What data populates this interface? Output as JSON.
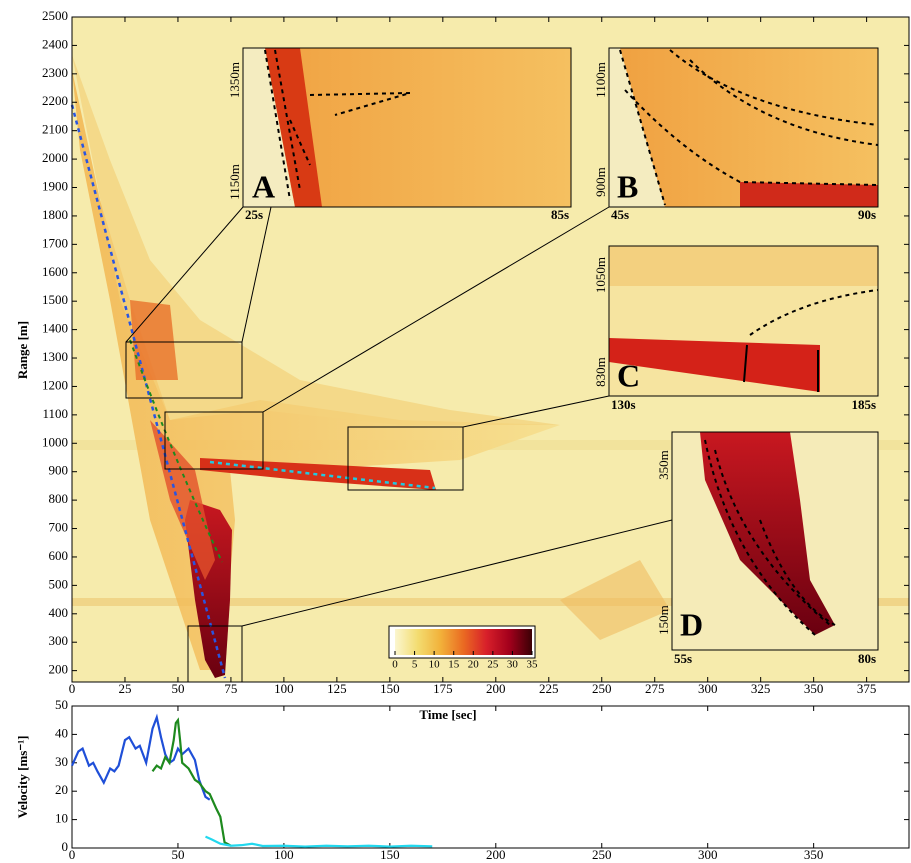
{
  "chart_data": [
    {
      "type": "image",
      "xlabel": "Time [sec]",
      "ylabel": "Range [m]",
      "xlim": [
        0,
        395
      ],
      "ylim": [
        160,
        2500
      ],
      "xticks": [
        0,
        25,
        50,
        75,
        100,
        125,
        150,
        175,
        200,
        225,
        250,
        275,
        300,
        325,
        350,
        375
      ],
      "yticks": [
        200,
        300,
        400,
        500,
        600,
        700,
        800,
        900,
        1000,
        1100,
        1200,
        1300,
        1400,
        1500,
        1600,
        1700,
        1800,
        1900,
        2000,
        2100,
        2200,
        2300,
        2400,
        2500
      ],
      "colorbar": {
        "lim": [
          0,
          35
        ],
        "ticks": [
          0,
          5,
          10,
          15,
          20,
          25,
          30,
          35
        ],
        "colors": [
          "#fbf6cf",
          "#f3dc70",
          "#f2b13a",
          "#ea6a22",
          "#d8202a",
          "#a3001c",
          "#3b0005"
        ]
      },
      "insets": [
        {
          "label": "A",
          "ylabels": [
            "1350m",
            "1150m"
          ],
          "xlabels": [
            "25s",
            "85s"
          ]
        },
        {
          "label": "B",
          "ylabels": [
            "1100m",
            "900m"
          ],
          "xlabels": [
            "45s",
            "90s"
          ]
        },
        {
          "label": "C",
          "ylabels": [
            "1050m",
            "830m"
          ],
          "xlabels": [
            "130s",
            "185s"
          ]
        },
        {
          "label": "D",
          "ylabels": [
            "350m",
            "150m"
          ],
          "xlabels": [
            "55s",
            "80s"
          ]
        }
      ]
    },
    {
      "type": "line",
      "ylabel": "Velocity [ms⁻¹]",
      "xlim": [
        0,
        395
      ],
      "ylim": [
        0,
        50
      ],
      "xticks": [
        0,
        50,
        100,
        150,
        200,
        250,
        300,
        350
      ],
      "yticks": [
        0,
        10,
        20,
        30,
        40,
        50
      ],
      "series": [
        {
          "color": "#1f4fd8",
          "x": [
            0,
            3,
            5,
            8,
            10,
            12,
            15,
            18,
            20,
            22,
            25,
            27,
            30,
            32,
            35,
            38,
            40,
            42,
            44,
            46,
            48,
            50,
            52,
            55,
            58,
            60,
            63,
            65
          ],
          "values": [
            29,
            34,
            35,
            29,
            30,
            27,
            23,
            28,
            27,
            29,
            38,
            39,
            35,
            36,
            30,
            42,
            46,
            39,
            33,
            30,
            31,
            35,
            33,
            35,
            31,
            24,
            18,
            17
          ]
        },
        {
          "color": "#1e8a1e",
          "x": [
            38,
            40,
            42,
            44,
            46,
            48,
            49,
            50,
            51,
            52,
            55,
            58,
            60,
            63,
            65,
            68,
            70,
            72,
            75
          ],
          "values": [
            27,
            29,
            28,
            32,
            30,
            38,
            44,
            45,
            38,
            30,
            28,
            24,
            23,
            20,
            19,
            14,
            11,
            2,
            0.8
          ]
        },
        {
          "color": "#22d8ee",
          "x": [
            63,
            66,
            70,
            75,
            80,
            85,
            90,
            100,
            110,
            120,
            130,
            140,
            150,
            160,
            170
          ],
          "values": [
            4,
            3,
            1.5,
            0.8,
            1,
            1.5,
            0.7,
            0.8,
            0.5,
            0.8,
            0.6,
            0.8,
            0.5,
            0.8,
            0.6
          ]
        }
      ]
    }
  ]
}
